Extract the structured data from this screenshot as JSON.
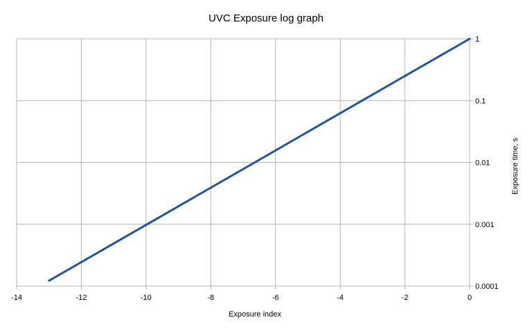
{
  "chart_data": {
    "type": "line",
    "title": "UVC Exposure log graph",
    "xlabel": "Exposure index",
    "ylabel": "Exposure time, s",
    "xlim": [
      -14,
      0
    ],
    "ylim": [
      0.0001,
      1
    ],
    "y_scale": "log",
    "y_axis_side": "right",
    "grid": true,
    "legend": "none",
    "x_ticks": [
      -14,
      -12,
      -10,
      -8,
      -6,
      -4,
      -2,
      0
    ],
    "x_tick_labels": [
      "-14",
      "-12",
      "-10",
      "-8",
      "-6",
      "-4",
      "-2",
      "0"
    ],
    "y_ticks": [
      0.0001,
      0.001,
      0.01,
      0.1,
      1
    ],
    "y_tick_labels": [
      "0.0001",
      "0.001",
      "0.01",
      "0.1",
      "1"
    ],
    "series": [
      {
        "color": "#1f5597",
        "x": [
          -13,
          -12,
          -11,
          -10,
          -9,
          -8,
          -7,
          -6,
          -5,
          -4,
          -3,
          -2,
          -1,
          0
        ],
        "y": [
          0.000122,
          0.000244,
          0.000488,
          0.000977,
          0.00195,
          0.0039,
          0.0078,
          0.0156,
          0.03125,
          0.0625,
          0.125,
          0.25,
          0.5,
          1
        ]
      }
    ]
  }
}
